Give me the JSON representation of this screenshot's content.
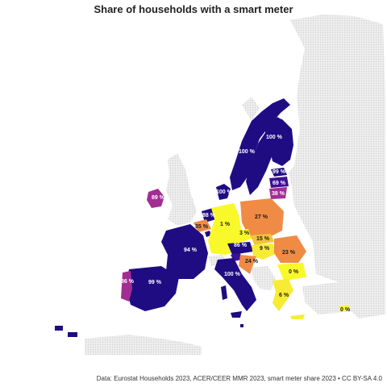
{
  "title": "Share of households with a smart meter",
  "source": "Data: Eurostat Households 2023, ACER/CEER MMR 2023, smart meter share 2023 • CC BY-SA 4.0",
  "colors": {
    "background_land": "#e4e4e4",
    "v100": "#1f0c83",
    "v90": "#3d0f96",
    "v80": "#6f14a3",
    "v35": "#b83589",
    "v25": "#f08b46",
    "v15": "#f2c43a",
    "v5": "#f7ec34",
    "v0": "#f9f82a"
  },
  "regions": [
    {
      "id": "norway",
      "label": "",
      "color": "v100"
    },
    {
      "id": "sweden",
      "label": "100 %",
      "color": "v100"
    },
    {
      "id": "finland",
      "label": "100 %",
      "color": "v100"
    },
    {
      "id": "estonia",
      "label": "99 %",
      "color": "v100"
    },
    {
      "id": "latvia",
      "label": "69 %",
      "color": "v90"
    },
    {
      "id": "lithuania",
      "label": "38 %",
      "color": "v80"
    },
    {
      "id": "ireland",
      "label": "89 %",
      "color": "v80"
    },
    {
      "id": "denmark",
      "label": "100 %",
      "color": "v100"
    },
    {
      "id": "netherlands",
      "label": "88 %",
      "color": "v100"
    },
    {
      "id": "belgium",
      "label": "35 %",
      "color": "v25"
    },
    {
      "id": "germany",
      "label": "1 %",
      "color": "v0"
    },
    {
      "id": "poland",
      "label": "27 %",
      "color": "v25"
    },
    {
      "id": "czechia",
      "label": "3 %",
      "color": "v0"
    },
    {
      "id": "slovakia",
      "label": "15 %",
      "color": "v15"
    },
    {
      "id": "austria",
      "label": "86 %",
      "color": "v100"
    },
    {
      "id": "hungary",
      "label": "9 %",
      "color": "v5"
    },
    {
      "id": "romania",
      "label": "23 %",
      "color": "v25"
    },
    {
      "id": "bulgaria",
      "label": "0 %",
      "color": "v0"
    },
    {
      "id": "croatia",
      "label": "24 %",
      "color": "v25"
    },
    {
      "id": "slovenia",
      "label": "",
      "color": "v100"
    },
    {
      "id": "france",
      "label": "94 %",
      "color": "v100"
    },
    {
      "id": "spain",
      "label": "99 %",
      "color": "v100"
    },
    {
      "id": "portugal",
      "label": "86 %",
      "color": "v80"
    },
    {
      "id": "italy",
      "label": "100 %",
      "color": "v100"
    },
    {
      "id": "greece",
      "label": "6 %",
      "color": "v5"
    },
    {
      "id": "cyprus",
      "label": "0 %",
      "color": "v0"
    },
    {
      "id": "luxembourg",
      "label": "",
      "color": "v100"
    },
    {
      "id": "malta",
      "label": "",
      "color": "v100"
    }
  ]
}
